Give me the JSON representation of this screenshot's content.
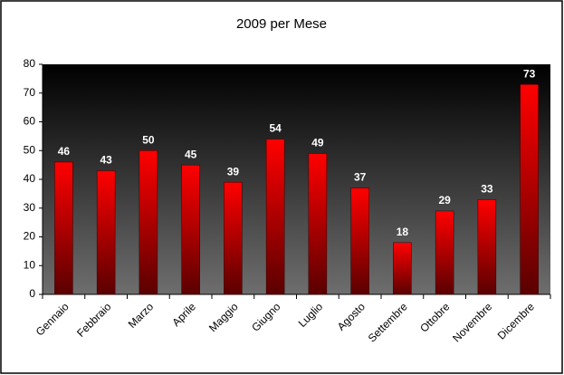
{
  "chart_data": {
    "type": "bar",
    "title": "2009 per Mese",
    "categories": [
      "Gennaio",
      "Febbraio",
      "Marzo",
      "Aprile",
      "Maggio",
      "Giugno",
      "Luglio",
      "Agosto",
      "Settembre",
      "Ottobre",
      "Novembre",
      "Dicembre"
    ],
    "values": [
      46,
      43,
      50,
      45,
      39,
      54,
      49,
      37,
      18,
      29,
      33,
      73
    ],
    "color": "#ff0000",
    "ylim": [
      0,
      80
    ],
    "yticks": [
      0,
      10,
      20,
      30,
      40,
      50,
      60,
      70,
      80
    ],
    "grid": false
  }
}
